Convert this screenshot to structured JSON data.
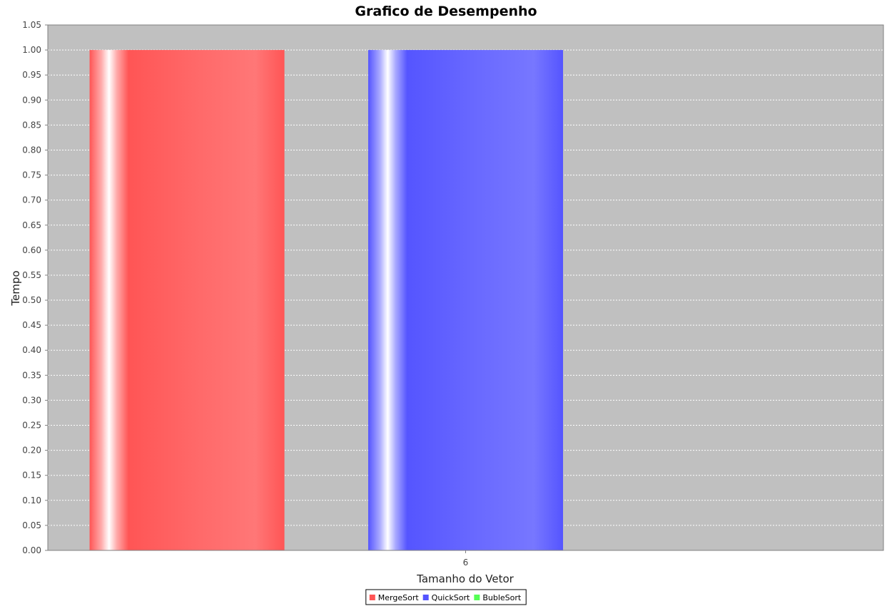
{
  "chart_data": {
    "type": "bar",
    "title": "Grafico de Desempenho",
    "xlabel": "Tamanho do Vetor",
    "ylabel": "Tempo",
    "categories": [
      "6"
    ],
    "series": [
      {
        "name": "MergeSort",
        "values": [
          1.0
        ],
        "color": "#ff5555"
      },
      {
        "name": "QuickSort",
        "values": [
          1.0
        ],
        "color": "#5555ff"
      },
      {
        "name": "BubleSort",
        "values": [
          0.0
        ],
        "color": "#55ff55"
      }
    ],
    "ylim": [
      0,
      1.05
    ],
    "yticks": [
      "0.00",
      "0.05",
      "0.10",
      "0.15",
      "0.20",
      "0.25",
      "0.30",
      "0.35",
      "0.40",
      "0.45",
      "0.50",
      "0.55",
      "0.60",
      "0.65",
      "0.70",
      "0.75",
      "0.80",
      "0.85",
      "0.90",
      "0.95",
      "1.00",
      "1.05"
    ],
    "grid": true,
    "legend_position": "bottom",
    "plot_background": "#c0c0c0"
  }
}
